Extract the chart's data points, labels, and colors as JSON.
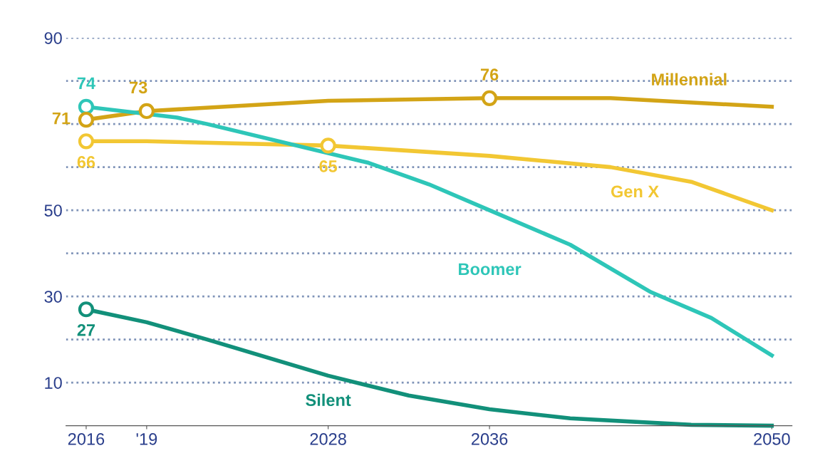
{
  "chart_data": {
    "type": "line",
    "series": [
      {
        "name": "Millennial",
        "color": "#d3a416",
        "x": [
          2016,
          2019,
          2028,
          2036,
          2042,
          2050
        ],
        "values": [
          71,
          73,
          75.4,
          76,
          76,
          74
        ]
      },
      {
        "name": "Gen X",
        "color": "#f2c733",
        "x": [
          2016,
          2019,
          2028,
          2036,
          2042,
          2046,
          2050
        ],
        "values": [
          66,
          66,
          65,
          62.6,
          60,
          56.6,
          50
        ]
      },
      {
        "name": "Boomer",
        "color": "#2ec6b8",
        "x": [
          2016,
          2020.5,
          2022,
          2030,
          2033,
          2036,
          2040,
          2044,
          2047,
          2050
        ],
        "values": [
          74,
          71.5,
          70,
          61,
          56,
          50,
          42,
          31,
          25,
          16.3
        ]
      },
      {
        "name": "Silent",
        "color": "#12907a",
        "x": [
          2016,
          2019,
          2022,
          2028,
          2032,
          2036,
          2040,
          2046,
          2050
        ],
        "values": [
          27,
          24,
          20,
          11.6,
          7,
          3.8,
          1.7,
          0.2,
          0
        ]
      }
    ],
    "xlim": [
      2015,
      2051
    ],
    "xticks": [
      2016,
      {
        "value": 2019,
        "label": "'19"
      },
      2028,
      2036,
      2050
    ],
    "ylim": [
      0,
      90
    ],
    "yticks": [
      10,
      {
        "value": 20,
        "label": null
      },
      30,
      {
        "value": 40,
        "label": null
      },
      50,
      {
        "value": 60,
        "label": null
      },
      {
        "value": 70,
        "label": null
      },
      {
        "value": 80,
        "label": null
      },
      90
    ],
    "grid": "y",
    "legend": false,
    "line_style": "solid",
    "annotations": [
      {
        "text": "74",
        "x": 2016,
        "y": 74
      },
      {
        "text": "71",
        "x": 2016,
        "y": 71
      },
      {
        "text": "73",
        "x": 2019,
        "y": 73
      },
      {
        "text": "76",
        "x": 2036,
        "y": 76
      },
      {
        "text": "66",
        "x": 2016,
        "y": 66
      },
      {
        "text": "65",
        "x": 2028,
        "y": 65
      },
      {
        "text": "27",
        "x": 2016,
        "y": 27
      }
    ]
  }
}
